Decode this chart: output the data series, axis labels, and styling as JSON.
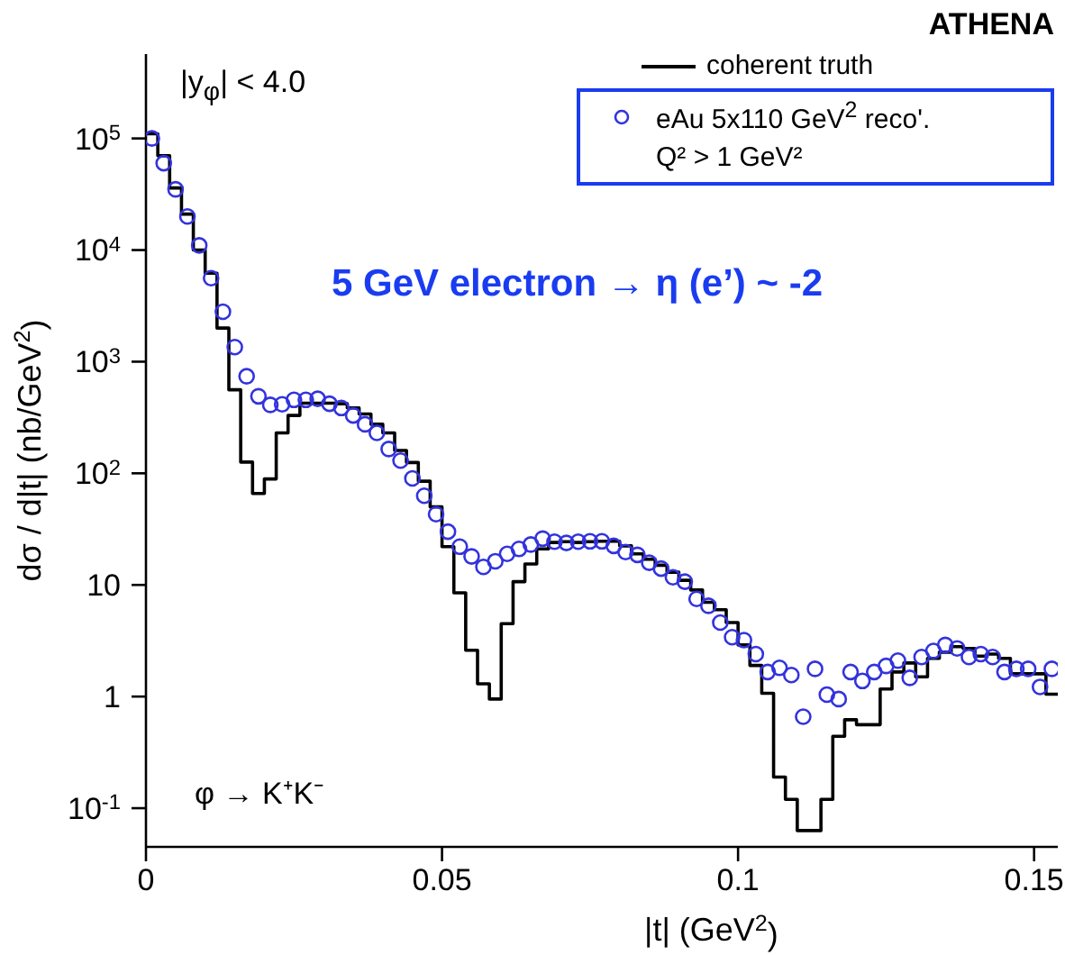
{
  "chart_data": {
    "type": "scatter",
    "xlabel": "|t| (GeV$^{2}$)",
    "ylabel": "dσ / d|t| (nb/GeV$^{2}$)",
    "xlim": [
      0,
      0.154
    ],
    "xticks": [
      0,
      0.05,
      0.1,
      0.15
    ],
    "ylim": [
      0.045,
      570000
    ],
    "log": "y",
    "yticks": [
      {
        "value": 0.1,
        "label": "10$^{-1}$"
      },
      1,
      10,
      {
        "value": 100,
        "label": "10$^{2}$"
      },
      {
        "value": 1000,
        "label": "10$^{3}$"
      },
      {
        "value": 10000,
        "label": "10$^{4}$"
      },
      {
        "value": 100000,
        "label": "10$^{5}$"
      }
    ],
    "legend": "top right",
    "grid": false,
    "series": [
      {
        "name": "coherent truth",
        "type": "histogram",
        "color": "#000000",
        "marker": "none",
        "bins": [
          0,
          0.002,
          0.004,
          0.006,
          0.008,
          0.01,
          0.012,
          0.014,
          0.016,
          0.018,
          0.02,
          0.022,
          0.024,
          0.026,
          0.028,
          0.03,
          0.032,
          0.034,
          0.036,
          0.038,
          0.04,
          0.042,
          0.044,
          0.046,
          0.048,
          0.05,
          0.052,
          0.054,
          0.056,
          0.058,
          0.06,
          0.062,
          0.064,
          0.066,
          0.068,
          0.07,
          0.072,
          0.074,
          0.076,
          0.078,
          0.08,
          0.082,
          0.084,
          0.086,
          0.088,
          0.09,
          0.092,
          0.094,
          0.096,
          0.098,
          0.1,
          0.102,
          0.104,
          0.106,
          0.108,
          0.11,
          0.112,
          0.114,
          0.116,
          0.118,
          0.12,
          0.122,
          0.124,
          0.126,
          0.128,
          0.13,
          0.132,
          0.134,
          0.136,
          0.138,
          0.14,
          0.142,
          0.144,
          0.146,
          0.148,
          0.15,
          0.152,
          0.154
        ],
        "values": [
          110000,
          70000,
          36000,
          21000,
          10000,
          6200,
          2000,
          560,
          126,
          66,
          89,
          230,
          330,
          425,
          425,
          425,
          420,
          385,
          340,
          275,
          230,
          160,
          125,
          85,
          50,
          22,
          8.5,
          2.6,
          1.3,
          0.95,
          4.5,
          10.7,
          15.4,
          21,
          24,
          24.4,
          24,
          24.4,
          24.6,
          24.6,
          22.4,
          19,
          17,
          15,
          13,
          11,
          9,
          7,
          6,
          4.6,
          2.9,
          1.9,
          1.07,
          0.19,
          0.12,
          0.063,
          0.063,
          0.12,
          0.44,
          0.62,
          0.56,
          0.56,
          1.17,
          1.66,
          2,
          1.5,
          2.2,
          2.5,
          2.8,
          2.7,
          2.3,
          2.4,
          2.2,
          1.6,
          1.6,
          1.6,
          1.05
        ]
      },
      {
        "name": "eAu 5x110 GeV$^{2}$ reco'.",
        "color": "#3333dd",
        "marker": "circle",
        "x": [
          0.001,
          0.003,
          0.005,
          0.007,
          0.009,
          0.011,
          0.013,
          0.015,
          0.017,
          0.019,
          0.021,
          0.023,
          0.025,
          0.027,
          0.029,
          0.031,
          0.033,
          0.035,
          0.037,
          0.039,
          0.041,
          0.043,
          0.045,
          0.047,
          0.049,
          0.051,
          0.053,
          0.055,
          0.057,
          0.059,
          0.061,
          0.063,
          0.065,
          0.067,
          0.069,
          0.071,
          0.073,
          0.075,
          0.077,
          0.079,
          0.081,
          0.083,
          0.085,
          0.087,
          0.089,
          0.091,
          0.093,
          0.095,
          0.097,
          0.099,
          0.101,
          0.103,
          0.105,
          0.107,
          0.109,
          0.111,
          0.113,
          0.115,
          0.117,
          0.119,
          0.121,
          0.123,
          0.125,
          0.127,
          0.129,
          0.131,
          0.133,
          0.135,
          0.137,
          0.139,
          0.141,
          0.143,
          0.145,
          0.147,
          0.149,
          0.151,
          0.153
        ],
        "values": [
          100000,
          60000,
          35000,
          20000,
          11000,
          5600,
          2800,
          1350,
          740,
          490,
          410,
          415,
          455,
          455,
          465,
          420,
          385,
          330,
          275,
          230,
          165,
          130,
          90,
          63,
          43,
          30,
          22,
          18,
          14.5,
          16.3,
          19,
          21,
          23,
          26,
          24.4,
          23.8,
          24.4,
          24.6,
          24.6,
          22.4,
          19.7,
          18.6,
          15.8,
          14,
          11.7,
          10.7,
          7.5,
          6.5,
          4.6,
          3.4,
          3.2,
          2.4,
          1.66,
          1.81,
          1.56,
          0.66,
          1.77,
          1.04,
          0.95,
          1.66,
          1.38,
          1.66,
          1.88,
          2.1,
          1.47,
          2.26,
          2.56,
          2.9,
          2.7,
          2.26,
          2.4,
          2.26,
          1.66,
          1.77,
          1.77,
          1.22,
          1.77
        ]
      }
    ],
    "annotations": [
      "|y$_{φ}$| < 4.0",
      "φ → K⁺K⁻",
      "5 GeV electron → η (e’) ~ -2",
      "ATHENA",
      "Q² > 1 GeV²"
    ]
  }
}
